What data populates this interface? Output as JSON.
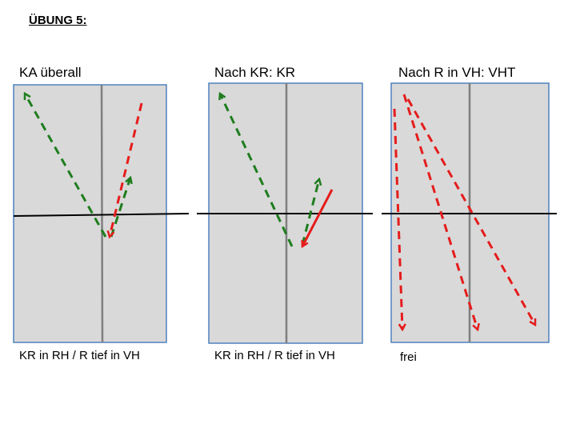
{
  "title": "ÜBUNG 5:",
  "panels": [
    {
      "title": "KA überall",
      "caption": "KR in RH / R tief in VH"
    },
    {
      "title": "Nach KR: KR",
      "caption": "KR in RH / R tief in VH"
    },
    {
      "title": "Nach R in VH: VHT",
      "caption": "frei"
    }
  ],
  "colors": {
    "panel_fill": "#d9d9d9",
    "panel_border": "#4f81bd",
    "green": "#1e7d1e",
    "red": "#e51c1c"
  }
}
